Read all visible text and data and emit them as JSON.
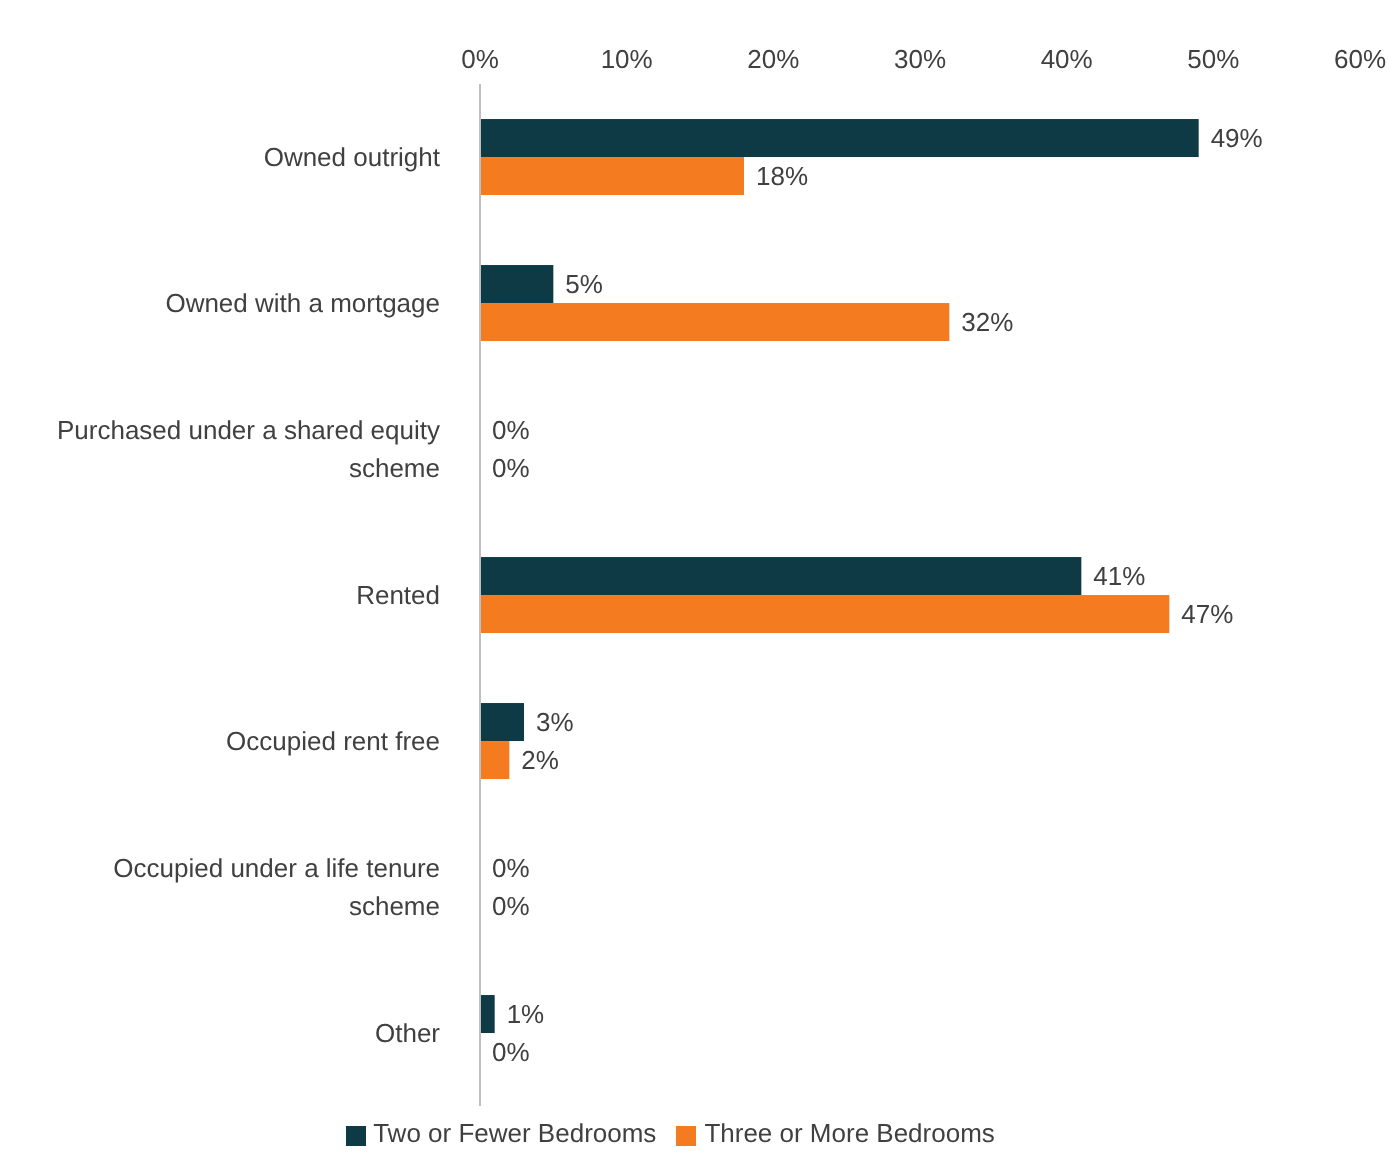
{
  "chart_data": {
    "type": "bar",
    "orientation": "horizontal",
    "categories": [
      "Owned outright",
      "Owned with a mortgage",
      "Purchased under a shared equity scheme",
      "Rented",
      "Occupied rent free",
      "Occupied under a life tenure scheme",
      "Other"
    ],
    "series": [
      {
        "name": "Two or Fewer Bedrooms",
        "color": "#0e3a46",
        "values": [
          49,
          5,
          0,
          41,
          3,
          0,
          1
        ],
        "value_labels": [
          "49%",
          "5%",
          "0%",
          "41%",
          "3%",
          "0%",
          "1%"
        ]
      },
      {
        "name": "Three or More Bedrooms",
        "color": "#f47b20",
        "values": [
          18,
          32,
          0,
          47,
          2,
          0,
          0
        ],
        "value_labels": [
          "18%",
          "32%",
          "0%",
          "47%",
          "2%",
          "0%",
          "0%"
        ]
      }
    ],
    "xlim": [
      0,
      60
    ],
    "xticks": [
      {
        "value": 0,
        "label": "0%"
      },
      {
        "value": 10,
        "label": "10%"
      },
      {
        "value": 20,
        "label": "20%"
      },
      {
        "value": 30,
        "label": "30%"
      },
      {
        "value": 40,
        "label": "40%"
      },
      {
        "value": 50,
        "label": "50%"
      },
      {
        "value": 60,
        "label": "60%"
      }
    ],
    "grid": false,
    "legend": "bottom"
  }
}
